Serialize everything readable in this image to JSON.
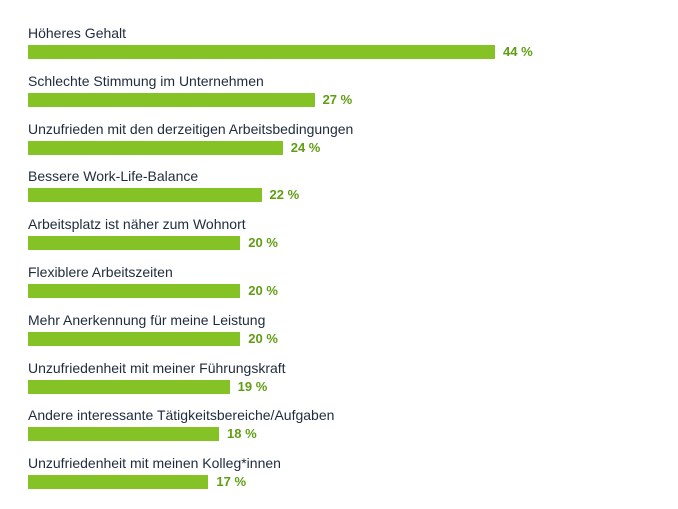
{
  "chart_data": {
    "type": "bar",
    "orientation": "horizontal",
    "categories": [
      "Höheres Gehalt",
      "Schlechte Stimmung im Unternehmen",
      "Unzufrieden mit den derzeitigen Arbeitsbedingungen",
      "Bessere Work-Life-Balance",
      "Arbeitsplatz ist näher zum Wohnort",
      "Flexiblere Arbeitszeiten",
      "Mehr Anerkennung für meine Leistung",
      "Unzufriedenheit mit meiner Führungskraft",
      "Andere interessante Tätigkeitsbereiche/Aufgaben",
      "Unzufriedenheit mit meinen Kolleg*innen"
    ],
    "values": [
      44,
      27,
      24,
      22,
      20,
      20,
      20,
      19,
      18,
      17
    ],
    "value_labels": [
      "44 %",
      "27 %",
      "24 %",
      "22 %",
      "20 %",
      "20 %",
      "20 %",
      "19 %",
      "18 %",
      "17 %"
    ],
    "unit": "%",
    "xlim": [
      0,
      44
    ],
    "grid": false,
    "legend": "none",
    "colors": {
      "bar": "#85c226",
      "value_label": "#5f9e12",
      "category_label": "#1f2b3d"
    }
  }
}
